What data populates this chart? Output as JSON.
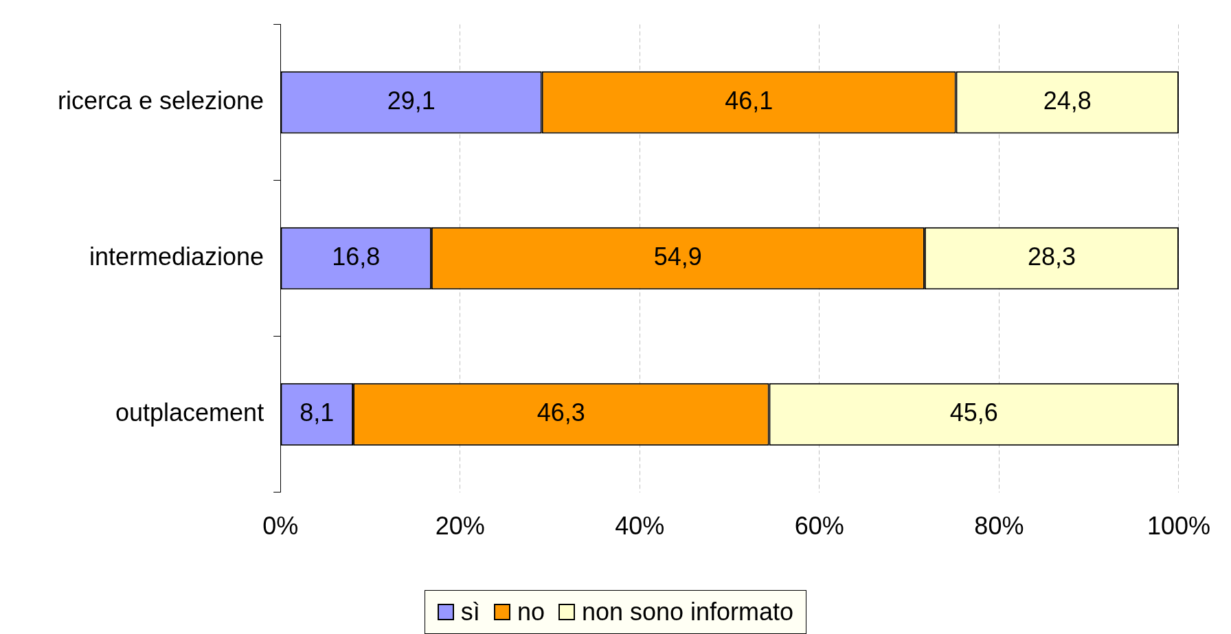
{
  "chart_data": {
    "type": "bar",
    "orientation": "horizontal",
    "stacked": true,
    "categories": [
      "ricerca e selezione",
      "intermediazione",
      "outplacement"
    ],
    "series": [
      {
        "name": "sì",
        "color": "#9999ff",
        "values": [
          29.1,
          16.8,
          8.1
        ],
        "value_labels": [
          "29,1",
          "16,8",
          "8,1"
        ]
      },
      {
        "name": "no",
        "color": "#ff9900",
        "values": [
          46.1,
          54.9,
          46.3
        ],
        "value_labels": [
          "46,1",
          "54,9",
          "46,3"
        ]
      },
      {
        "name": "non sono informato",
        "color": "#ffffcc",
        "values": [
          24.8,
          28.3,
          45.6
        ],
        "value_labels": [
          "24,8",
          "28,3",
          "45,6"
        ]
      }
    ],
    "xlim": [
      0,
      100
    ],
    "xticks": [
      {
        "value": 0,
        "label": "0%"
      },
      {
        "value": 20,
        "label": "20%"
      },
      {
        "value": 40,
        "label": "40%"
      },
      {
        "value": 60,
        "label": "60%"
      },
      {
        "value": 80,
        "label": "80%"
      },
      {
        "value": 100,
        "label": "100%"
      }
    ],
    "grid": "x",
    "legend": "bottom"
  }
}
